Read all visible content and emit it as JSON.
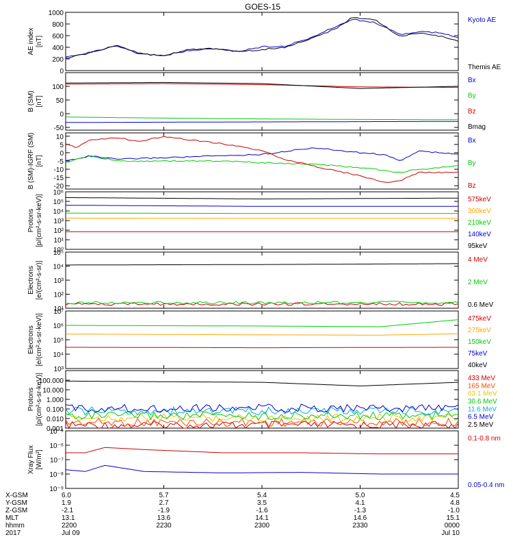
{
  "title": "GOES-15",
  "x_ticks": [
    {
      "label": "6.0",
      "row": "xgsm"
    },
    {
      "label": "5.7",
      "row": "xgsm"
    }
  ],
  "ephemeris": {
    "row_labels": [
      "X-GSM",
      "Y-GSM",
      "Z-GSM",
      "MLT",
      "hhmm",
      "2017"
    ],
    "columns": [
      [
        "6.0",
        "1.9",
        "-2.1",
        "13.1",
        "2200",
        "Jul 09"
      ],
      [
        "5.7",
        "2.7",
        "-1.9",
        "13.6",
        "2230",
        ""
      ],
      [
        "5.4",
        "3.5",
        "-1.6",
        "14.1",
        "2300",
        ""
      ],
      [
        "5.0",
        "4.1",
        "-1.3",
        "14.6",
        "2330",
        ""
      ],
      [
        "4.5",
        "4.8",
        "-1.0",
        "15.1",
        "0000",
        "Jul 10"
      ]
    ]
  },
  "chart_data": [
    {
      "type": "line",
      "panel": "ae",
      "ylabel": "AE index\n[nT]",
      "yscale": "linear",
      "ylim": [
        0,
        1000
      ],
      "ytick_labels": [
        "0",
        "200",
        "400",
        "600",
        "800",
        "1000"
      ],
      "ytick_values": [
        0,
        200,
        400,
        600,
        800,
        1000
      ],
      "series": [
        {
          "name": "Kyoto AE",
          "color": "#0000cc",
          "x": [
            0,
            0.06,
            0.13,
            0.19,
            0.25,
            0.31,
            0.38,
            0.44,
            0.5,
            0.56,
            0.63,
            0.69,
            0.73,
            0.79,
            0.85,
            0.91,
            0.96,
            1.0
          ],
          "values": [
            230,
            310,
            420,
            280,
            260,
            340,
            370,
            330,
            410,
            420,
            580,
            760,
            880,
            820,
            620,
            670,
            640,
            560
          ]
        },
        {
          "name": "Themis AE",
          "color": "#000000",
          "x": [
            0,
            0.06,
            0.13,
            0.19,
            0.25,
            0.31,
            0.38,
            0.44,
            0.5,
            0.56,
            0.63,
            0.69,
            0.73,
            0.79,
            0.85,
            0.91,
            0.96,
            1.0
          ],
          "values": [
            210,
            300,
            430,
            300,
            250,
            360,
            380,
            320,
            360,
            400,
            560,
            720,
            920,
            860,
            590,
            650,
            580,
            500
          ]
        }
      ]
    },
    {
      "type": "line",
      "panel": "b_sm",
      "ylabel": "B (SM)\n[nT]",
      "yscale": "linear",
      "ylim": [
        -60,
        150
      ],
      "ytick_labels": [
        "-50",
        "0",
        "50",
        "100"
      ],
      "ytick_values": [
        -50,
        0,
        50,
        100
      ],
      "series": [
        {
          "name": "Bx",
          "color": "#0000cc",
          "x": [
            0,
            0.25,
            0.5,
            0.75,
            1.0
          ],
          "values": [
            -32,
            -31,
            -30,
            -29,
            -28
          ]
        },
        {
          "name": "By",
          "color": "#00cc00",
          "x": [
            0,
            0.25,
            0.5,
            0.75,
            1.0
          ],
          "values": [
            -12,
            -16,
            -19,
            -21,
            -22
          ]
        },
        {
          "name": "Bz",
          "color": "#cc0000",
          "x": [
            0,
            0.25,
            0.5,
            0.75,
            1.0
          ],
          "values": [
            108,
            110,
            106,
            98,
            96
          ]
        },
        {
          "name": "Bmag",
          "color": "#000000",
          "x": [
            0,
            0.25,
            0.5,
            0.75,
            1.0
          ],
          "values": [
            112,
            114,
            110,
            92,
            100
          ]
        }
      ]
    },
    {
      "type": "line",
      "panel": "b_igrf",
      "ylabel": "B (SM)-IGRF (SM)\n[nT]",
      "yscale": "linear",
      "ylim": [
        -22,
        12
      ],
      "ytick_labels": [
        "-20",
        "-15",
        "-10",
        "-5",
        "0",
        "5",
        "10"
      ],
      "ytick_values": [
        -20,
        -15,
        -10,
        -5,
        0,
        5,
        10
      ],
      "series": [
        {
          "name": "Bx",
          "color": "#0000cc",
          "x": [
            0,
            0.06,
            0.13,
            0.25,
            0.38,
            0.5,
            0.63,
            0.75,
            0.81,
            0.85,
            0.9,
            1.0
          ],
          "values": [
            -5,
            -2,
            -4,
            -3,
            -2,
            -1,
            3,
            0,
            -1,
            -5,
            1,
            -1
          ]
        },
        {
          "name": "By",
          "color": "#00cc00",
          "x": [
            0,
            0.06,
            0.13,
            0.25,
            0.38,
            0.5,
            0.63,
            0.75,
            0.85,
            0.9,
            1.0
          ],
          "values": [
            -6,
            -2,
            -5,
            -5,
            -5,
            -6,
            -7,
            -9,
            -12,
            -10,
            -8
          ]
        },
        {
          "name": "Bz",
          "color": "#cc0000",
          "x": [
            0,
            0.03,
            0.06,
            0.13,
            0.19,
            0.25,
            0.31,
            0.38,
            0.44,
            0.5,
            0.56,
            0.63,
            0.69,
            0.75,
            0.81,
            0.85,
            0.9,
            1.0
          ],
          "values": [
            5,
            3,
            8,
            9,
            7,
            10,
            8,
            6,
            4,
            1,
            -4,
            -8,
            -11,
            -14,
            -18,
            -17,
            -12,
            -12
          ]
        }
      ]
    },
    {
      "type": "line",
      "panel": "protons_mag",
      "ylabel": "Protons\n[p/(cm²-s-sr-keV)]",
      "yscale": "log",
      "ylim": [
        1,
        1000000
      ],
      "ytick_labels": [
        "10⁰",
        "10¹",
        "10²",
        "10³",
        "10⁴",
        "10⁵",
        "10⁶"
      ],
      "ytick_values": [
        1,
        10,
        100,
        1000,
        10000,
        100000,
        1000000
      ],
      "series": [
        {
          "name": "575keV",
          "color": "#cc0000",
          "x": [
            0,
            0.5,
            1.0
          ],
          "values": [
            70,
            70,
            70
          ]
        },
        {
          "name": "300keV",
          "color": "#ffa500",
          "x": [
            0,
            0.5,
            1.0
          ],
          "values": [
            1800,
            1700,
            1700
          ]
        },
        {
          "name": "210keV",
          "color": "#00cc00",
          "x": [
            0,
            0.5,
            1.0
          ],
          "values": [
            6000,
            5500,
            5500
          ]
        },
        {
          "name": "140keV",
          "color": "#0000cc",
          "x": [
            0,
            0.5,
            1.0
          ],
          "values": [
            40000,
            30000,
            30000
          ]
        },
        {
          "name": "95keV",
          "color": "#000000",
          "x": [
            0,
            0.5,
            1.0
          ],
          "values": [
            250000,
            180000,
            220000
          ]
        }
      ]
    },
    {
      "type": "line",
      "panel": "electrons_mag",
      "ylabel": "Electrons\n[e/(cm²-s-sr)]",
      "yscale": "log",
      "ylim": [
        10,
        100000
      ],
      "ytick_labels": [
        "10¹",
        "10²",
        "10³",
        "10⁴",
        "10⁵"
      ],
      "ytick_values": [
        10,
        100,
        1000,
        10000,
        100000
      ],
      "series": [
        {
          "name": "4 MeV",
          "color": "#cc0000",
          "x": [
            0,
            0.5,
            1.0
          ],
          "values": [
            20,
            20,
            20
          ]
        },
        {
          "name": "2 MeV",
          "color": "#00cc00",
          "x": [
            0,
            0.5,
            1.0
          ],
          "values": [
            25,
            25,
            26
          ]
        },
        {
          "name": "0.6 MeV",
          "color": "#000000",
          "x": [
            0,
            0.5,
            1.0
          ],
          "values": [
            12000,
            13000,
            15000
          ]
        }
      ]
    },
    {
      "type": "line",
      "panel": "electrons_maged",
      "ylabel": "Electrons\n[e/(cm²-s-sr-keV)]",
      "yscale": "log",
      "ylim": [
        1000,
        10000000
      ],
      "ytick_labels": [
        "10³",
        "10⁴",
        "10⁵",
        "10⁶",
        "10⁷"
      ],
      "ytick_values": [
        1000,
        10000,
        100000,
        1000000,
        10000000
      ],
      "series": [
        {
          "name": "475keV",
          "color": "#cc0000",
          "x": [
            0,
            0.5,
            1.0
          ],
          "values": [
            30000,
            28000,
            30000
          ]
        },
        {
          "name": "275keV",
          "color": "#ffa500",
          "x": [
            0,
            0.5,
            0.8,
            1.0
          ],
          "values": [
            250000,
            220000,
            210000,
            260000
          ]
        },
        {
          "name": "150keV",
          "color": "#00cc00",
          "x": [
            0,
            0.5,
            0.8,
            1.0
          ],
          "values": [
            1000000,
            900000,
            800000,
            2500000
          ]
        },
        {
          "name": "75keV",
          "color": "#0000cc",
          "x": [
            0,
            1.0
          ],
          "values": [
            null,
            null
          ]
        },
        {
          "name": "40keV",
          "color": "#000000",
          "x": [
            0,
            1.0
          ],
          "values": [
            null,
            null
          ]
        }
      ]
    },
    {
      "type": "line",
      "panel": "protons_eps",
      "ylabel": "Protons\n[p/(cm²-s-sr-keV)]",
      "yscale": "log",
      "ylim": [
        0.001,
        1000
      ],
      "ytick_labels": [
        "0.001",
        "0.010",
        "0.100",
        "1.000",
        "10.000",
        "100.000"
      ],
      "ytick_values": [
        0.001,
        0.01,
        0.1,
        1,
        10,
        100
      ],
      "series": [
        {
          "name": "433 MeV",
          "color": "#cc0000",
          "x": [
            0,
            1.0
          ],
          "values": [
            0.002,
            0.002
          ]
        },
        {
          "name": "165 MeV",
          "color": "#ff4500",
          "x": [
            0,
            1.0
          ],
          "values": [
            0.004,
            0.004
          ]
        },
        {
          "name": "63.1 MeV",
          "color": "#e6c800",
          "x": [
            0,
            1.0
          ],
          "values": [
            0.012,
            0.012
          ]
        },
        {
          "name": "30.6 MeV",
          "color": "#00cc00",
          "x": [
            0,
            1.0
          ],
          "values": [
            0.02,
            0.02
          ]
        },
        {
          "name": "11.6 MeV",
          "color": "#00aadd",
          "x": [
            0,
            1.0
          ],
          "values": [
            0.06,
            0.06
          ]
        },
        {
          "name": "6.5 MeV",
          "color": "#0000cc",
          "x": [
            0,
            1.0
          ],
          "values": [
            0.12,
            0.12
          ]
        },
        {
          "name": "2.5 MeV",
          "color": "#000000",
          "x": [
            0,
            0.5,
            0.75,
            1.0
          ],
          "values": [
            80,
            60,
            25,
            60
          ]
        }
      ]
    },
    {
      "type": "line",
      "panel": "xray",
      "ylabel": "Xray Flux\n[W/m²]",
      "yscale": "log",
      "ylim": [
        1e-09,
        1e-05
      ],
      "ytick_labels": [
        "10⁻⁹",
        "10⁻⁸",
        "10⁻⁷",
        "10⁻⁶",
        "10⁻⁵"
      ],
      "ytick_values": [
        1e-09,
        1e-08,
        1e-07,
        1e-06,
        1e-05
      ],
      "series": [
        {
          "name": "0.1-0.8 nm",
          "color": "#cc0000",
          "x": [
            0,
            0.05,
            0.1,
            0.2,
            0.4,
            0.6,
            0.8,
            1.0
          ],
          "values": [
            3e-07,
            3e-07,
            7e-07,
            5e-07,
            3e-07,
            3e-07,
            2.5e-07,
            2.5e-07
          ]
        },
        {
          "name": "0.05-0.4 nm",
          "color": "#0000cc",
          "x": [
            0,
            0.05,
            0.1,
            0.2,
            0.4,
            0.6,
            0.8,
            1.0
          ],
          "values": [
            2e-08,
            1.5e-08,
            4e-08,
            1.5e-08,
            1.2e-08,
            1.3e-08,
            1e-08,
            1e-08
          ]
        }
      ]
    }
  ]
}
